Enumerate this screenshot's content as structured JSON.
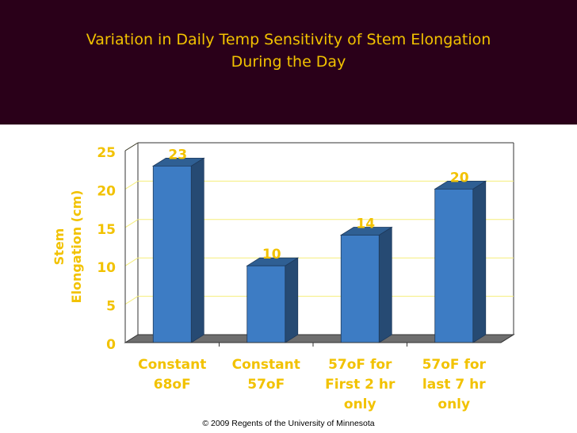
{
  "slide": {
    "title_line1": "Variation in Daily Temp Sensitivity of Stem Elongation",
    "title_line2": "During the Day",
    "copyright": "© 2009 Regents of the University of Minnesota"
  },
  "colors": {
    "header_bg": "#2a0019",
    "title": "#f2c200",
    "label": "#f2c200",
    "bar_front": "#3d7cc4",
    "bar_side": "#264a73",
    "bar_top": "#2f5f93",
    "grid": "#f5ee7a",
    "floor": "#6e6e6e"
  },
  "chart_data": {
    "type": "bar",
    "title": "Variation in Daily Temp Sensitivity of Stem Elongation During the Day",
    "categories": [
      [
        "Constant",
        "68oF"
      ],
      [
        "Constant",
        "57oF"
      ],
      [
        "57oF for",
        "First 2 hr",
        "only"
      ],
      [
        "57oF for",
        "last 7 hr",
        "only"
      ]
    ],
    "values": [
      23,
      10,
      14,
      20
    ],
    "value_labels": [
      "23",
      "10",
      "14",
      "20"
    ],
    "ylabel_line1": "Stem",
    "ylabel_line2": "Elongation (cm)",
    "ylim": [
      0,
      25
    ],
    "yticks": [
      0,
      5,
      10,
      15,
      20,
      25
    ],
    "grid": true
  }
}
